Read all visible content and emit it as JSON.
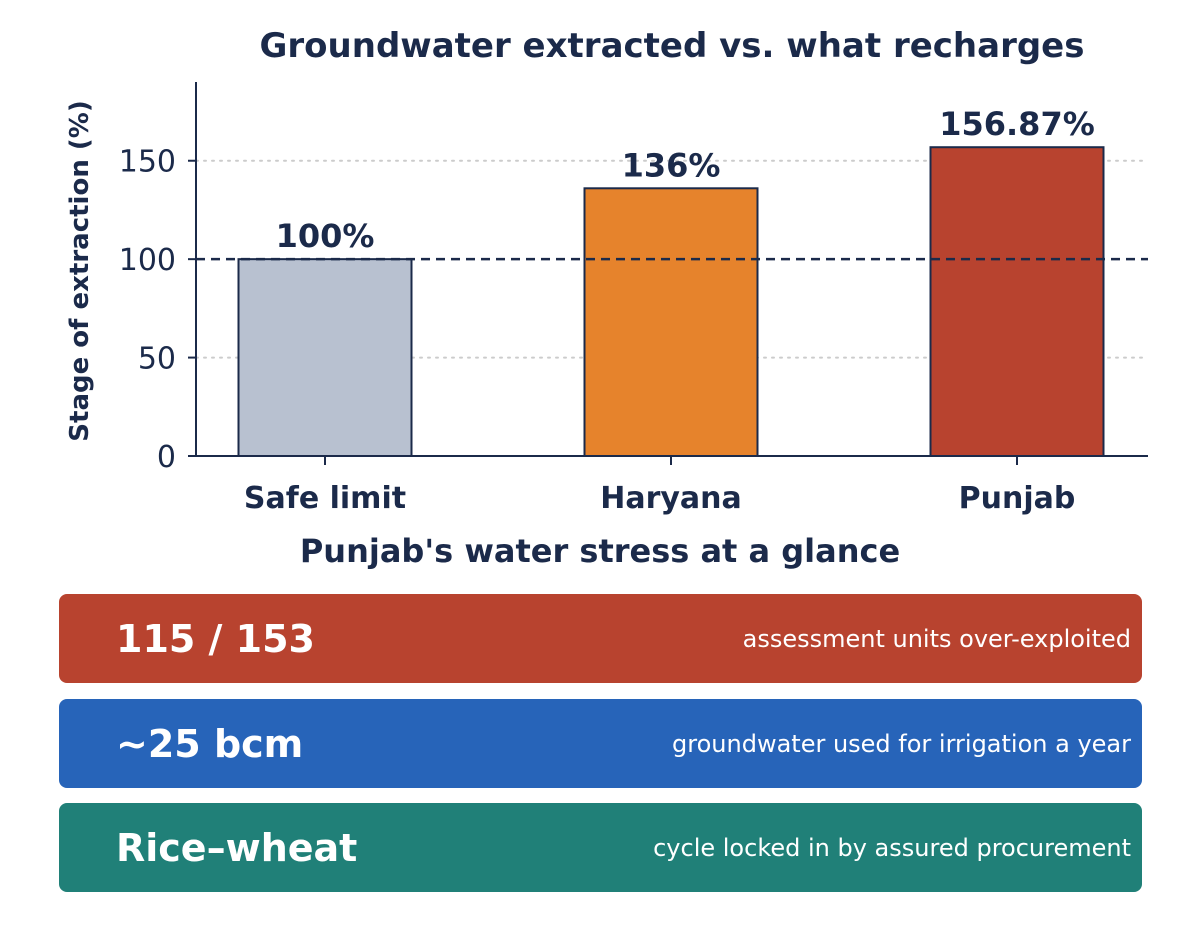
{
  "chart_data": {
    "type": "bar",
    "title": "Groundwater extracted vs. what recharges",
    "xlabel": "",
    "ylabel": "Stage of extraction (%)",
    "categories": [
      "Safe limit",
      "Haryana",
      "Punjab"
    ],
    "values": [
      100,
      136,
      156.87
    ],
    "data_labels": [
      "100%",
      "136%",
      "156.87%"
    ],
    "bar_colors": [
      "#b8c1d0",
      "#e6832c",
      "#b8432f"
    ],
    "ylim": [
      0,
      190
    ],
    "yticks": [
      0,
      50,
      100,
      150
    ],
    "reference_line": {
      "value": 100,
      "style": "dashed"
    },
    "grid": "horizontal dotted",
    "legend": "none"
  },
  "summary": {
    "title": "Punjab's water stress at a glance",
    "cards": [
      {
        "value": "115 / 153",
        "description": "assessment units over-exploited",
        "color": "#b8432f"
      },
      {
        "value": "~25 bcm",
        "description": "groundwater used for irrigation a year",
        "color": "#2764b9"
      },
      {
        "value": "Rice–wheat",
        "description": "cycle locked in by assured procurement",
        "color": "#208078"
      }
    ]
  },
  "colors": {
    "text": "#1b2a4a",
    "axis": "#1b2a4a",
    "grid": "#cccccc"
  }
}
